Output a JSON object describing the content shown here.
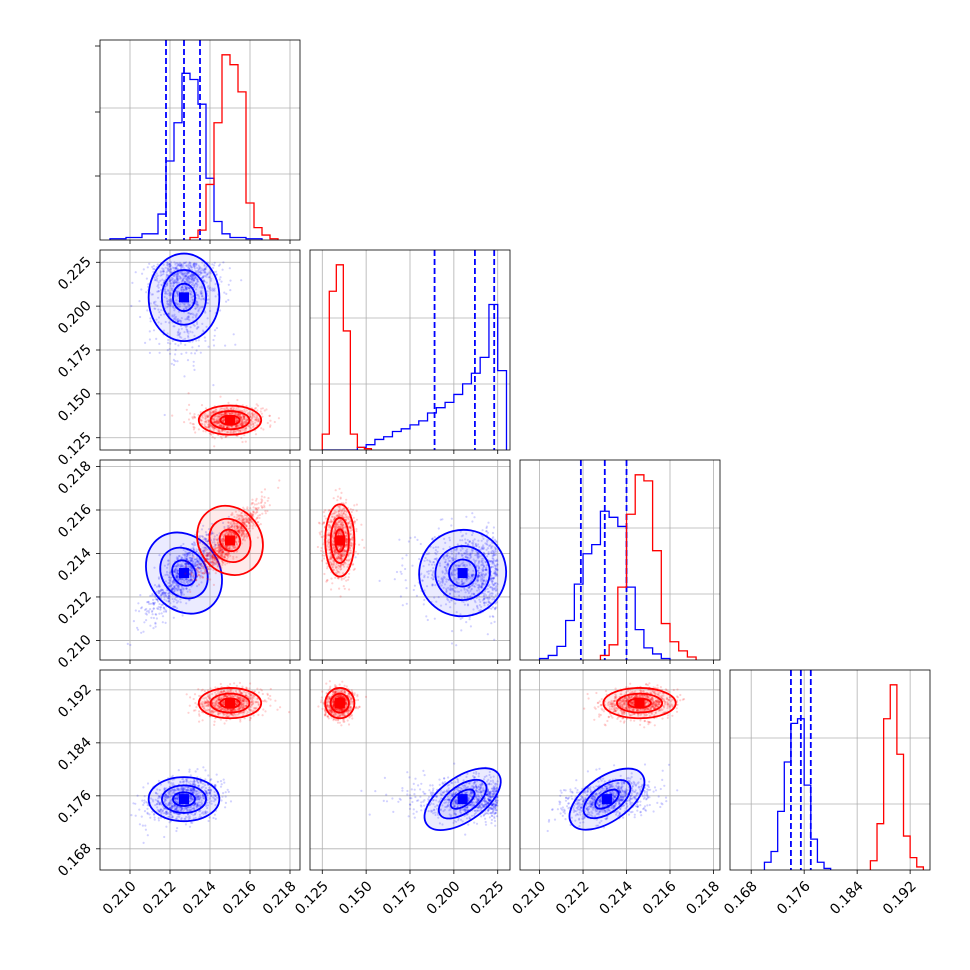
{
  "chart_data": {
    "type": "corner",
    "dimensions": 4,
    "series": [
      {
        "color": "#0000ff",
        "means": [
          0.2127,
          0.21,
          0.2131,
          0.1755
        ],
        "stds": [
          0.00085,
          0.022,
          0.00095,
          0.0016
        ],
        "quantile_lines": [
          [
            0.2118,
            0.2127,
            0.2135
          ],
          [
            0.189,
            0.212,
            0.223
          ],
          [
            0.2119,
            0.213,
            0.214
          ],
          [
            0.174,
            0.1755,
            0.177
          ]
        ],
        "histograms": [
          {
            "bins": [
              0.209,
              0.2098,
              0.2106,
              0.2114,
              0.2118,
              0.2122,
              0.2126,
              0.213,
              0.2134,
              0.2138,
              0.2142,
              0.2146,
              0.215,
              0.2158,
              0.2166
            ],
            "counts": [
              1,
              2,
              5,
              21,
              64,
              95,
              135,
              130,
              110,
              50,
              15,
              5,
              2,
              1
            ]
          },
          {
            "bins": [
              0.125,
              0.129,
              0.133,
              0.137,
              0.141,
              0.145,
              0.15,
              0.155,
              0.16,
              0.165,
              0.17,
              0.175,
              0.18,
              0.185,
              0.19,
              0.195,
              0.2,
              0.205,
              0.21,
              0.215,
              0.22,
              0.225,
              0.23
            ],
            "counts": [
              0,
              0,
              0,
              0,
              0,
              2,
              4,
              8,
              10,
              14,
              16,
              19,
              22,
              28,
              32,
              36,
              42,
              50,
              58,
              70,
              110,
              60
            ]
          },
          {
            "bins": [
              0.21,
              0.2104,
              0.2108,
              0.2112,
              0.2116,
              0.212,
              0.2124,
              0.2128,
              0.2132,
              0.2136,
              0.214,
              0.2144,
              0.2148,
              0.2152,
              0.2156,
              0.216
            ],
            "counts": [
              1,
              3,
              9,
              26,
              50,
              70,
              76,
              98,
              94,
              88,
              48,
              20,
              8,
              4,
              1
            ]
          },
          {
            "bins": [
              0.17,
              0.171,
              0.172,
              0.173,
              0.174,
              0.175,
              0.176,
              0.177,
              0.178,
              0.179,
              0.18
            ],
            "counts": [
              5,
              12,
              38,
              70,
              95,
              98,
              55,
              20,
              5,
              1
            ]
          }
        ]
      },
      {
        "color": "#ff0000",
        "means": [
          0.215,
          0.135,
          0.2146,
          0.19
        ],
        "stds": [
          0.00075,
          0.004,
          0.0008,
          0.0011
        ],
        "quantile_lines": [],
        "histograms": [
          {
            "bins": [
              0.213,
              0.2134,
              0.2138,
              0.2142,
              0.2146,
              0.215,
              0.2154,
              0.2158,
              0.2162,
              0.2166,
              0.217,
              0.2174
            ],
            "counts": [
              2,
              8,
              45,
              95,
              150,
              142,
              120,
              30,
              10,
              4,
              1
            ]
          },
          {
            "bins": [
              0.125,
              0.129,
              0.133,
              0.137,
              0.141,
              0.145,
              0.149,
              0.153
            ],
            "counts": [
              12,
              120,
              140,
              90,
              12,
              2,
              1
            ]
          },
          {
            "bins": [
              0.2128,
              0.2132,
              0.2136,
              0.214,
              0.2144,
              0.2148,
              0.2152,
              0.2156,
              0.216,
              0.2164,
              0.2168,
              0.2172
            ],
            "counts": [
              3,
              10,
              48,
              96,
              122,
              118,
              72,
              24,
              12,
              6,
              2
            ]
          },
          {
            "bins": [
              0.186,
              0.187,
              0.188,
              0.189,
              0.19,
              0.191,
              0.192,
              0.193,
              0.194
            ],
            "counts": [
              6,
              30,
              98,
              120,
              75,
              22,
              8,
              2
            ]
          }
        ]
      }
    ],
    "axes": [
      {
        "range": [
          0.2085,
          0.2185
        ],
        "ticks": [
          "0.210",
          "0.212",
          "0.214",
          "0.216",
          "0.218"
        ]
      },
      {
        "range": [
          0.118,
          0.232
        ],
        "ticks": [
          "0.125",
          "0.150",
          "0.175",
          "0.200",
          "0.225"
        ]
      },
      {
        "range": [
          0.2091,
          0.2183
        ],
        "ticks": [
          "0.210",
          "0.212",
          "0.214",
          "0.216",
          "0.218"
        ]
      },
      {
        "range": [
          0.1648,
          0.195
        ],
        "ticks": [
          "0.168",
          "0.176",
          "0.184",
          "0.192"
        ]
      }
    ],
    "xlabel": "",
    "ylabel": "",
    "grid": true
  }
}
